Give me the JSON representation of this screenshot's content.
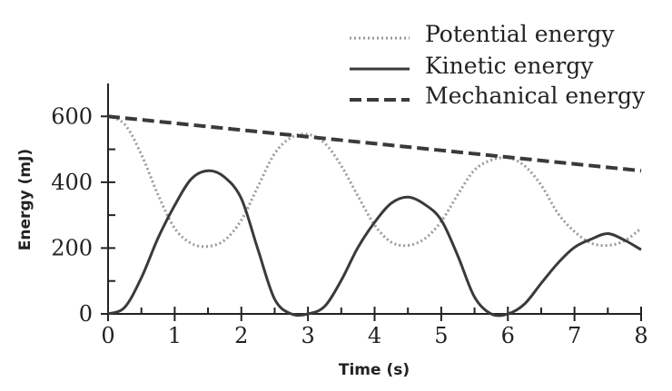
{
  "chart_data": {
    "type": "line",
    "xlabel": "Time (s)",
    "ylabel": "Energy (mJ)",
    "xlim": [
      0,
      8
    ],
    "ylim": [
      0,
      700
    ],
    "x_ticks": [
      0,
      1,
      2,
      3,
      4,
      5,
      6,
      7,
      8
    ],
    "y_ticks": [
      0,
      200,
      400,
      600
    ],
    "grid": false,
    "legend_position": "top-right",
    "series": [
      {
        "name": "Potential energy",
        "style": "dotted",
        "color": "#9a9a9a",
        "x": [
          0,
          0.25,
          0.5,
          0.75,
          1,
          1.25,
          1.5,
          1.75,
          2,
          2.25,
          2.5,
          2.75,
          3,
          3.25,
          3.5,
          3.75,
          4,
          4.25,
          4.5,
          4.75,
          5,
          5.25,
          5.5,
          5.75,
          6,
          6.25,
          6.5,
          6.75,
          7,
          7.25,
          7.5,
          7.75,
          8
        ],
        "y": [
          600,
          576,
          484,
          362,
          260,
          214,
          205,
          224,
          285,
          387,
          487,
          536,
          545,
          519,
          450,
          358,
          270,
          218,
          208,
          228,
          281,
          363,
          437,
          467,
          474,
          450,
          391,
          306,
          250,
          215,
          208,
          222,
          260
        ]
      },
      {
        "name": "Kinetic energy",
        "style": "solid",
        "color": "#3a3a3a",
        "x": [
          0,
          0.25,
          0.5,
          0.75,
          1,
          1.25,
          1.5,
          1.75,
          2,
          2.25,
          2.5,
          2.75,
          3,
          3.25,
          3.5,
          3.75,
          4,
          4.25,
          4.5,
          4.75,
          5,
          5.25,
          5.5,
          5.75,
          6,
          6.25,
          6.5,
          6.75,
          7,
          7.25,
          7.5,
          7.75,
          8
        ],
        "y": [
          0,
          20,
          110,
          230,
          330,
          410,
          435,
          415,
          350,
          195,
          45,
          0,
          0,
          23,
          102,
          202,
          278,
          336,
          355,
          333,
          285,
          176,
          51,
          0,
          0,
          30,
          93,
          154,
          202,
          227,
          244,
          224,
          195
        ]
      },
      {
        "name": "Mechanical energy",
        "style": "dashed",
        "color": "#3a3a3a",
        "x": [
          0,
          8
        ],
        "y": [
          600,
          435
        ]
      }
    ]
  }
}
